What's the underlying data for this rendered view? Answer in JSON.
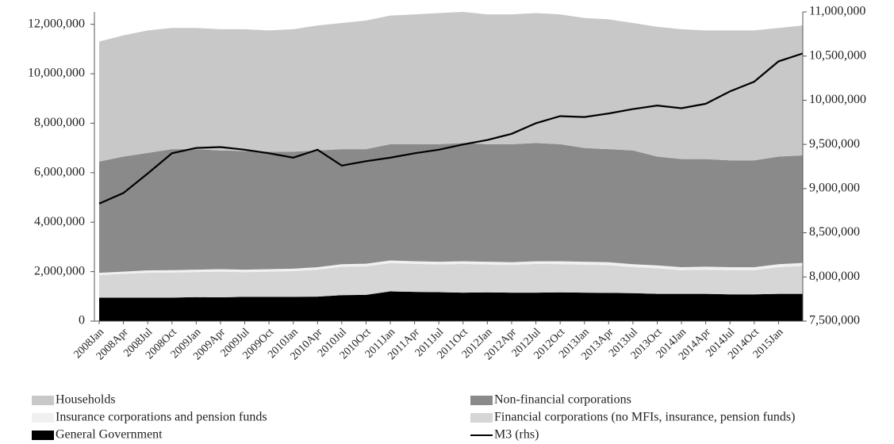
{
  "chart_data": {
    "type": "stacked-area-line",
    "categories": [
      "2008Jan",
      "2008Apr",
      "2008Jul",
      "2008Oct",
      "2009Jan",
      "2009Apr",
      "2009Jul",
      "2009Oct",
      "2010Jan",
      "2010Apr",
      "2010Jul",
      "2010Oct",
      "2011Jan",
      "2011Apr",
      "2011Jul",
      "2011Oct",
      "2012Jan",
      "2012Apr",
      "2012Jul",
      "2012Oct",
      "2013Jan",
      "2013Apr",
      "2013Jul",
      "2013Oct",
      "2014Jan",
      "2014Apr",
      "2014Jul",
      "2014Oct",
      "2015Jan",
      null
    ],
    "series": [
      {
        "name": "General Government",
        "color": "#000000",
        "values": [
          950000,
          950000,
          950000,
          950000,
          970000,
          960000,
          980000,
          980000,
          980000,
          990000,
          1050000,
          1060000,
          1200000,
          1180000,
          1170000,
          1150000,
          1160000,
          1150000,
          1150000,
          1160000,
          1150000,
          1140000,
          1130000,
          1100000,
          1100000,
          1100000,
          1080000,
          1080000,
          1100000,
          1100000
        ]
      },
      {
        "name": "Financial corporations (no MFIs, insurance, pension funds)",
        "color": "#d6d6d6",
        "values": [
          910000,
          960000,
          1005000,
          1015000,
          1015000,
          1040000,
          1000000,
          1020000,
          1040000,
          1090000,
          1145000,
          1155000,
          1145000,
          1135000,
          1120000,
          1160000,
          1130000,
          1120000,
          1160000,
          1145000,
          1135000,
          1125000,
          1055000,
          1035000,
          960000,
          980000,
          980000,
          980000,
          1080000,
          1130000
        ]
      },
      {
        "name": "Insurance corporations and pension funds",
        "color": "#f0f0f0",
        "values": [
          90000,
          90000,
          95000,
          95000,
          95000,
          100000,
          100000,
          100000,
          100000,
          100000,
          105000,
          105000,
          105000,
          105000,
          110000,
          110000,
          110000,
          110000,
          110000,
          115000,
          115000,
          115000,
          115000,
          115000,
          120000,
          120000,
          120000,
          120000,
          120000,
          120000
        ]
      },
      {
        "name": "Non-financial corporations",
        "color": "#8a8a8a",
        "values": [
          4500000,
          4650000,
          4750000,
          4890000,
          4870000,
          4800000,
          4800000,
          4750000,
          4730000,
          4720000,
          4650000,
          4630000,
          4700000,
          4730000,
          4750000,
          4780000,
          4750000,
          4770000,
          4780000,
          4730000,
          4600000,
          4570000,
          4600000,
          4400000,
          4370000,
          4350000,
          4320000,
          4320000,
          4350000,
          4350000
        ]
      },
      {
        "name": "Households",
        "color": "#c8c8c8",
        "values": [
          4850000,
          4900000,
          4950000,
          4900000,
          4900000,
          4900000,
          4920000,
          4900000,
          4950000,
          5050000,
          5100000,
          5200000,
          5200000,
          5250000,
          5300000,
          5300000,
          5250000,
          5250000,
          5250000,
          5250000,
          5250000,
          5250000,
          5150000,
          5250000,
          5250000,
          5200000,
          5250000,
          5250000,
          5200000,
          5250000
        ]
      },
      {
        "name": "M3 (rhs)",
        "color": "#000000",
        "axis": "y2",
        "values": [
          8830000,
          8950000,
          9170000,
          9400000,
          9460000,
          9470000,
          9440000,
          9400000,
          9350000,
          9440000,
          9260000,
          9310000,
          9350000,
          9400000,
          9440000,
          9500000,
          9550000,
          9620000,
          9740000,
          9820000,
          9810000,
          9850000,
          9900000,
          9940000,
          9910000,
          9960000,
          10100000,
          10210000,
          10440000,
          10530000
        ]
      }
    ],
    "ylim": [
      0,
      12500000
    ],
    "yticks": [
      0,
      {
        "value": 2000000,
        "label": "2,000,000"
      },
      {
        "value": 4000000,
        "label": "4,000,000"
      },
      {
        "value": 6000000,
        "label": "6,000,000"
      },
      {
        "value": 8000000,
        "label": "8,000,000"
      },
      {
        "value": 10000000,
        "label": "10,000,000"
      },
      {
        "value": 12000000,
        "label": "12,000,000"
      }
    ],
    "y2lim": [
      7500000,
      11000000
    ],
    "y2ticks": [
      {
        "value": 7500000,
        "label": "7,500,000"
      },
      {
        "value": 8000000,
        "label": "8,000,000"
      },
      {
        "value": 8500000,
        "label": "8,500,000"
      },
      {
        "value": 9000000,
        "label": "9,000,000"
      },
      {
        "value": 9500000,
        "label": "9,500,000"
      },
      {
        "value": 10000000,
        "label": "10,000,000"
      },
      {
        "value": 10500000,
        "label": "10,500,000"
      },
      {
        "value": 11000000,
        "label": "11,000,000"
      }
    ],
    "legend_order": [
      4,
      3,
      2,
      1,
      0,
      5
    ]
  }
}
